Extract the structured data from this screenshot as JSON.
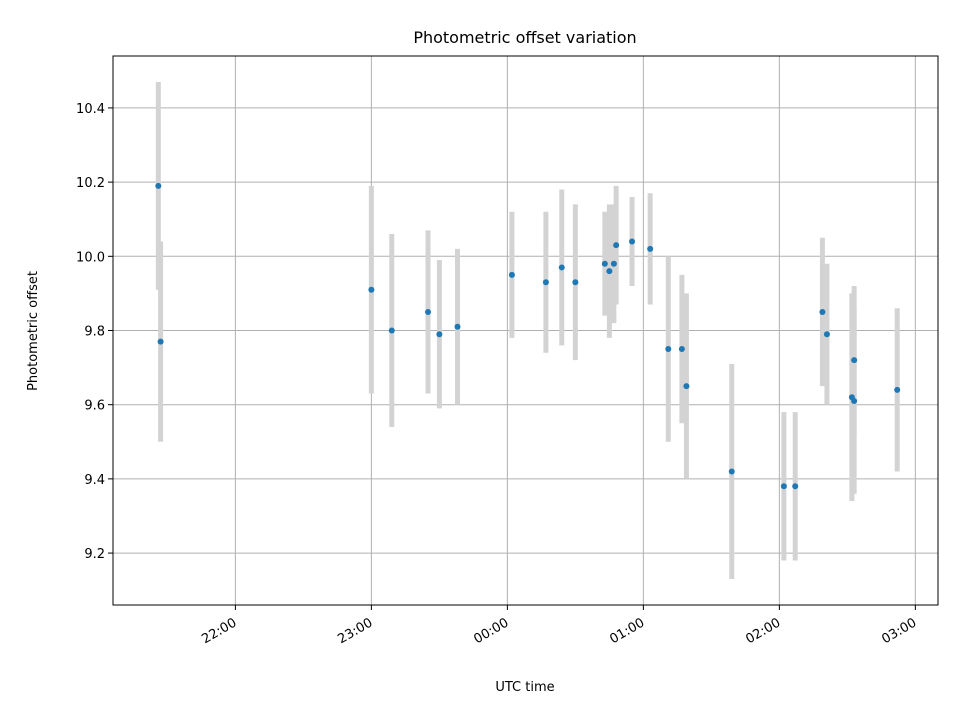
{
  "chart_data": {
    "type": "scatter",
    "title": "Photometric offset variation",
    "xlabel": "UTC time",
    "ylabel": "Photometric offset",
    "xlim": [
      "21:06",
      "03:10"
    ],
    "ylim": [
      9.06,
      10.54
    ],
    "x_ticks": [
      "22:00",
      "23:00",
      "00:00",
      "01:00",
      "02:00",
      "03:00"
    ],
    "y_ticks": [
      9.2,
      9.4,
      9.6,
      9.8,
      10.0,
      10.2,
      10.4
    ],
    "grid": true,
    "point_color": "#1f77b4",
    "errorbar_color": "#d3d3d3",
    "points": [
      {
        "x": "21:26",
        "y": 10.19,
        "err": 0.28
      },
      {
        "x": "21:27",
        "y": 9.77,
        "err": 0.27
      },
      {
        "x": "23:00",
        "y": 9.91,
        "err": 0.28
      },
      {
        "x": "23:09",
        "y": 9.8,
        "err": 0.26
      },
      {
        "x": "23:25",
        "y": 9.85,
        "err": 0.22
      },
      {
        "x": "23:30",
        "y": 9.79,
        "err": 0.2
      },
      {
        "x": "23:38",
        "y": 9.81,
        "err": 0.21
      },
      {
        "x": "00:02",
        "y": 9.95,
        "err": 0.17
      },
      {
        "x": "00:17",
        "y": 9.93,
        "err": 0.19
      },
      {
        "x": "00:24",
        "y": 9.97,
        "err": 0.21
      },
      {
        "x": "00:30",
        "y": 9.93,
        "err": 0.21
      },
      {
        "x": "00:43",
        "y": 9.98,
        "err": 0.14
      },
      {
        "x": "00:45",
        "y": 9.96,
        "err": 0.18
      },
      {
        "x": "00:47",
        "y": 9.98,
        "err": 0.16
      },
      {
        "x": "00:48",
        "y": 10.03,
        "err": 0.16
      },
      {
        "x": "00:55",
        "y": 10.04,
        "err": 0.12
      },
      {
        "x": "01:03",
        "y": 10.02,
        "err": 0.15
      },
      {
        "x": "01:11",
        "y": 9.75,
        "err": 0.25
      },
      {
        "x": "01:17",
        "y": 9.75,
        "err": 0.2
      },
      {
        "x": "01:19",
        "y": 9.65,
        "err": 0.25
      },
      {
        "x": "01:39",
        "y": 9.42,
        "err": 0.29
      },
      {
        "x": "02:02",
        "y": 9.38,
        "err": 0.2
      },
      {
        "x": "02:07",
        "y": 9.38,
        "err": 0.2
      },
      {
        "x": "02:19",
        "y": 9.85,
        "err": 0.2
      },
      {
        "x": "02:21",
        "y": 9.79,
        "err": 0.19
      },
      {
        "x": "02:32",
        "y": 9.62,
        "err": 0.28
      },
      {
        "x": "02:33",
        "y": 9.61,
        "err": 0.25
      },
      {
        "x": "02:33",
        "y": 9.72,
        "err": 0.2
      },
      {
        "x": "02:52",
        "y": 9.64,
        "err": 0.22
      }
    ]
  }
}
